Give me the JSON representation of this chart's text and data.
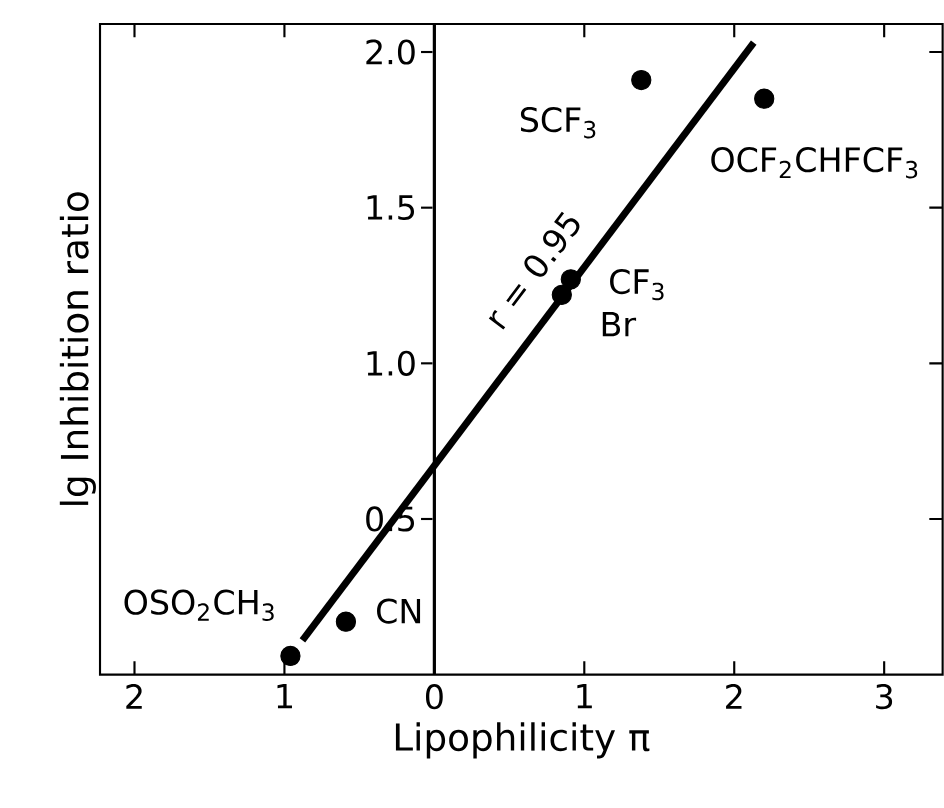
{
  "chart_data": {
    "type": "scatter",
    "xlabel": "Lipophilicity π",
    "ylabel": "lg Inhibition ratio",
    "xlim": [
      -2.23,
      3.39
    ],
    "ylim": [
      0,
      2.09
    ],
    "xticks": [
      {
        "value": -2,
        "label": "2"
      },
      {
        "value": -1,
        "label": "1"
      },
      0,
      1,
      2,
      3
    ],
    "yticks": [
      {
        "value": 0.5,
        "label": "0.5"
      },
      {
        "value": 1,
        "label": "1.0"
      },
      {
        "value": 1.5,
        "label": "1.5"
      },
      {
        "value": 2,
        "label": "2.0"
      }
    ],
    "grid": false,
    "series": [
      {
        "color": "#000000",
        "marker": "circle",
        "x": [
          -0.96,
          -0.59,
          0.85,
          0.91,
          1.38,
          2.2
        ],
        "values": [
          0.06,
          0.17,
          1.22,
          1.27,
          1.91,
          1.85
        ]
      },
      {
        "type": "line",
        "color": "#000000",
        "marker": "none",
        "line_style": "solid",
        "x": [
          -0.88,
          2.13
        ],
        "values": [
          0.11,
          2.03
        ]
      }
    ],
    "annotations": [
      {
        "text": "OSO$_{2}$CH$_{3}$",
        "x": -0.96,
        "y": 0.06
      },
      {
        "text": "CN",
        "x": -0.59,
        "y": 0.17
      },
      {
        "text": "Br",
        "x": 0.85,
        "y": 1.22
      },
      {
        "text": "CF$_{3}$",
        "x": 0.91,
        "y": 1.27
      },
      {
        "text": "SCF$_{3}$",
        "x": 1.38,
        "y": 1.91
      },
      {
        "text": "OCF$_{2}$CHFCF$_{3}$",
        "x": 2.2,
        "y": 1.85
      },
      "r = 0.95"
    ]
  }
}
